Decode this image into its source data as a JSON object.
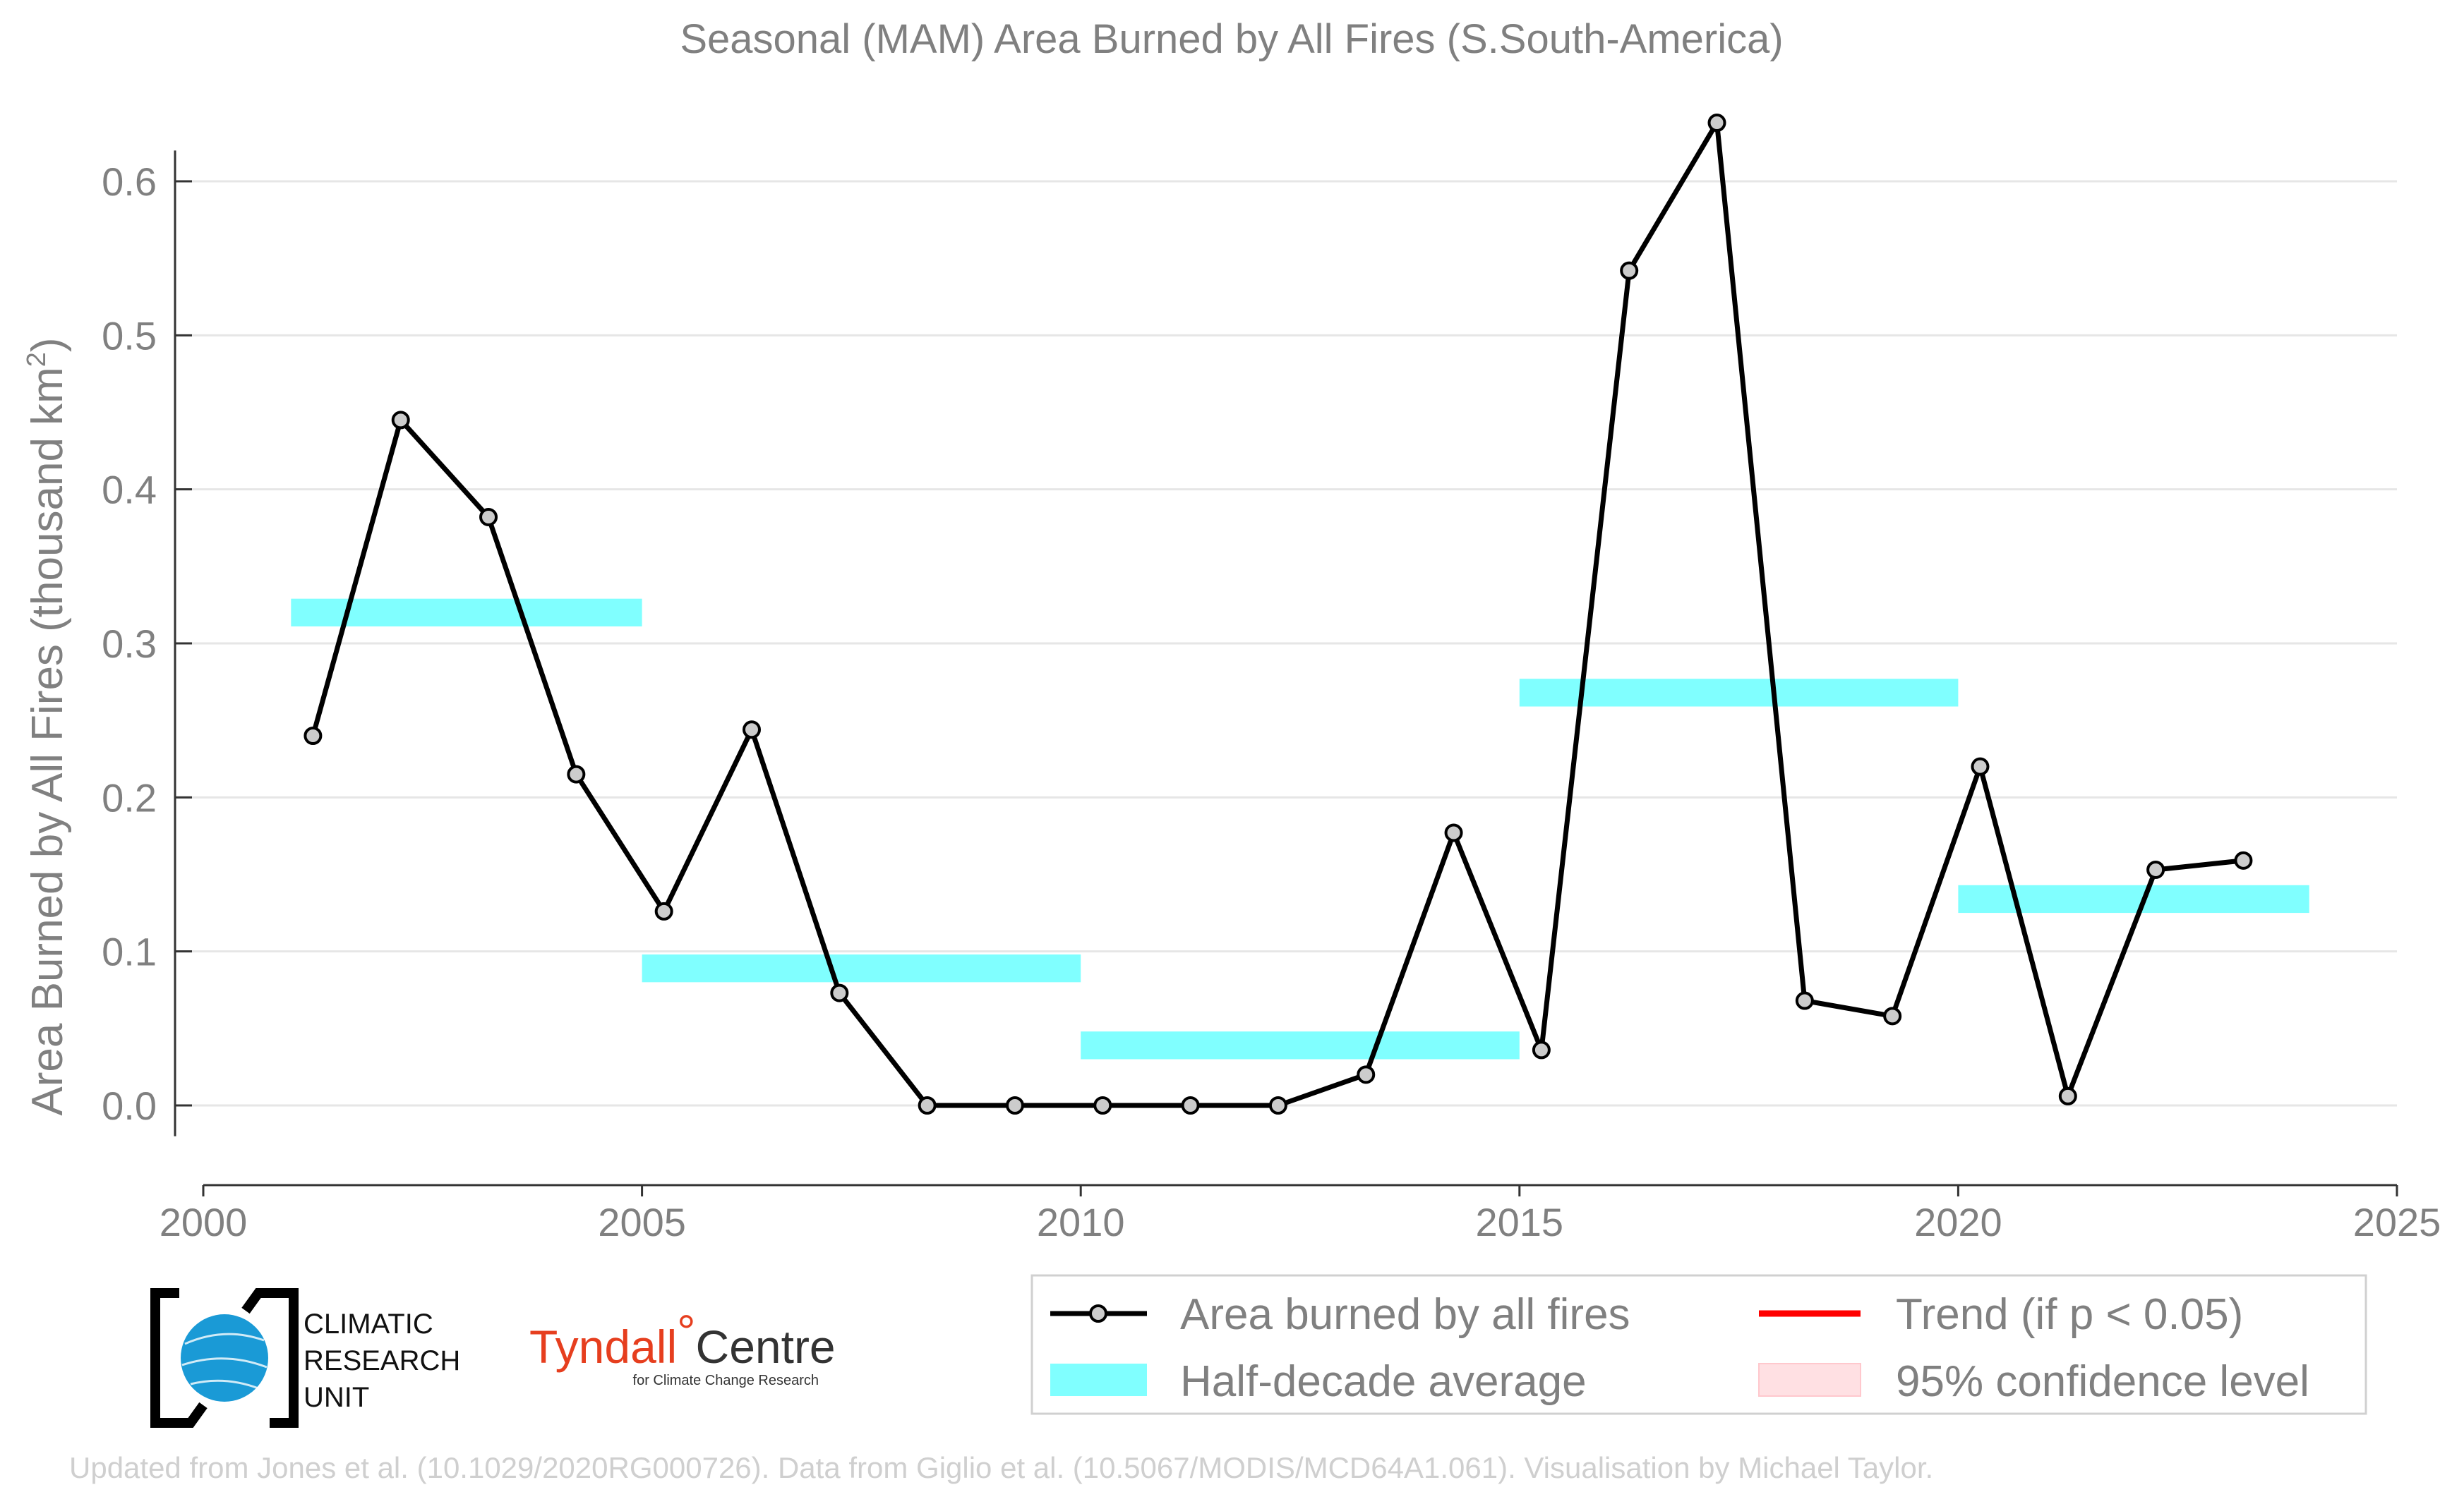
{
  "chart_data": {
    "type": "line",
    "title": "Seasonal (MAM) Area Burned by All Fires (S.South-America)",
    "xlabel": "",
    "ylabel": "Area Burned by All Fires (thousand km",
    "ylabel_sup": "2",
    "ylabel_close": ")",
    "xlim": [
      2000,
      2025
    ],
    "ylim": [
      -0.05,
      0.65
    ],
    "x_ticks": [
      "2000",
      "2005",
      "2010",
      "2015",
      "2020",
      "2025"
    ],
    "y_ticks": [
      "0.0",
      "0.1",
      "0.2",
      "0.3",
      "0.4",
      "0.5",
      "0.6"
    ],
    "grid": "horizontal",
    "series": [
      {
        "name": "Area burned by all fires",
        "color": "#000000",
        "marker_fill": "#cccccc",
        "x": [
          2001.25,
          2002.25,
          2003.25,
          2004.25,
          2005.25,
          2006.25,
          2007.25,
          2008.25,
          2009.25,
          2010.25,
          2011.25,
          2012.25,
          2013.25,
          2014.25,
          2015.25,
          2016.25,
          2017.25,
          2018.25,
          2019.25,
          2020.25,
          2021.25,
          2022.25,
          2023.25
        ],
        "values": [
          0.24,
          0.445,
          0.382,
          0.215,
          0.126,
          0.244,
          0.073,
          0.0,
          0.0,
          0.0,
          0.0,
          0.0,
          0.02,
          0.177,
          0.036,
          0.542,
          0.638,
          0.068,
          0.058,
          0.22,
          0.006,
          0.153,
          0.159
        ]
      }
    ],
    "half_decade_averages": {
      "name": "Half-decade average",
      "color": "#80ffff",
      "segments": [
        {
          "start": 2001,
          "end": 2005,
          "value": 0.32
        },
        {
          "start": 2005,
          "end": 2010,
          "value": 0.089
        },
        {
          "start": 2010,
          "end": 2015,
          "value": 0.039
        },
        {
          "start": 2015,
          "end": 2020,
          "value": 0.268
        },
        {
          "start": 2020,
          "end": 2024,
          "value": 0.134
        }
      ]
    },
    "legend": {
      "placement": "bottom-right",
      "items": [
        {
          "label": "Area burned by all fires",
          "kind": "line-marker",
          "color": "#000000"
        },
        {
          "label": "Trend (if p < 0.05)",
          "kind": "line",
          "color": "#ff0000"
        },
        {
          "label": "Half-decade average",
          "kind": "band",
          "color": "#80ffff"
        },
        {
          "label": "95% confidence level",
          "kind": "fill",
          "color": "#ffe0e3"
        }
      ]
    }
  },
  "logos": {
    "cru": [
      "CLIMATIC",
      "RESEARCH",
      "UNIT"
    ],
    "tyndall_main": "Tyndall",
    "tyndall_degree": "°",
    "tyndall_centre": "Centre",
    "tyndall_sub": "for Climate Change Research"
  },
  "credit": "Updated from Jones et al. (10.1029/2020RG000726). Data from Giglio et al. (10.5067/MODIS/MCD64A1.061). Visualisation by Michael Taylor."
}
